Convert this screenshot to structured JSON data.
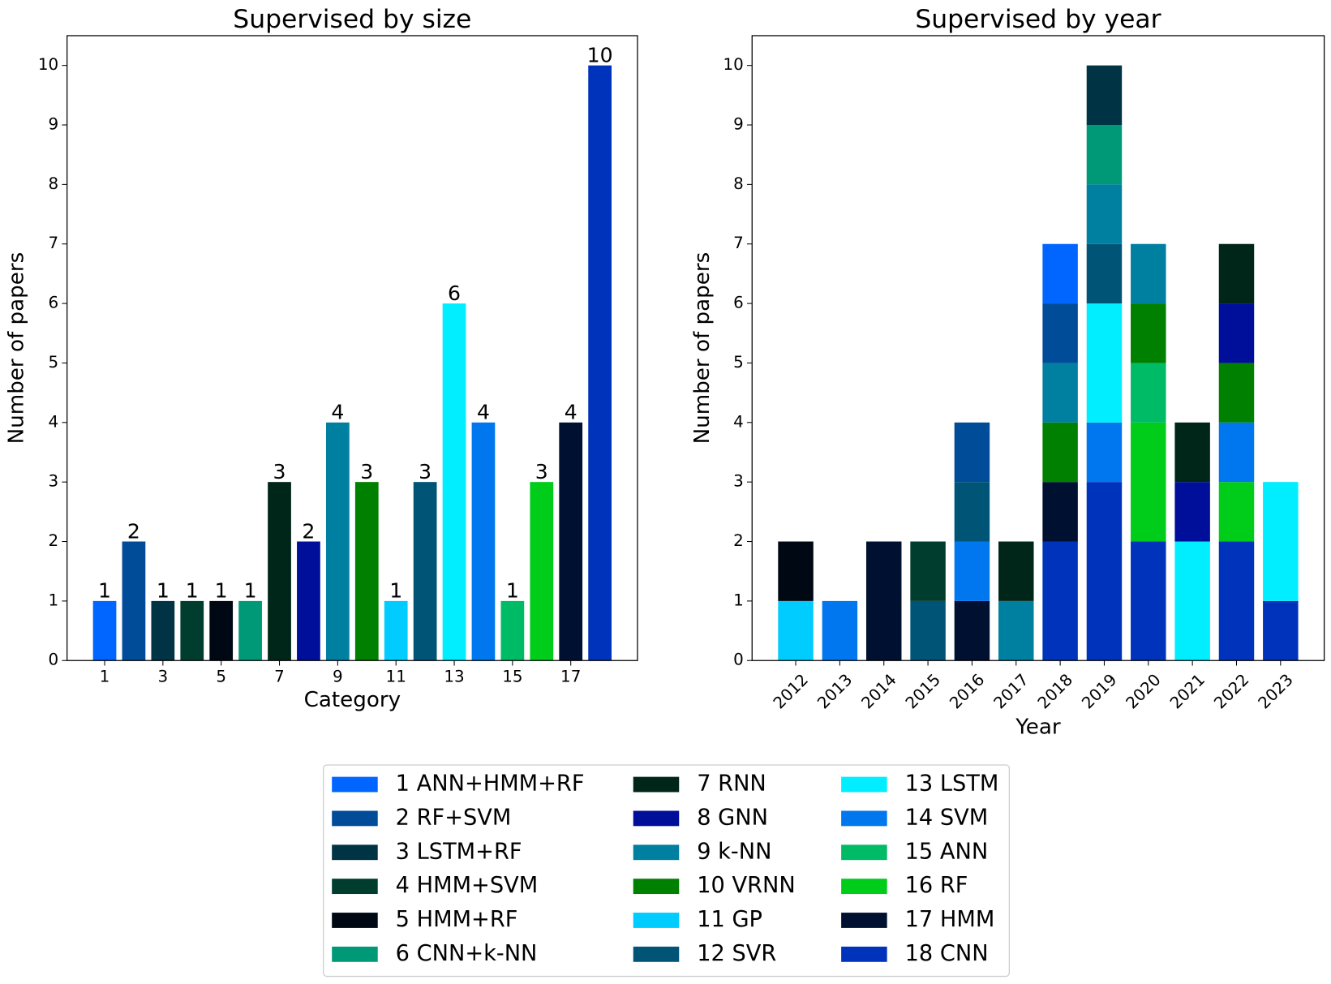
{
  "chart_data": [
    {
      "type": "bar",
      "title": "Supervised by size",
      "xlabel": "Category",
      "ylabel": "Number of papers",
      "x": [
        1,
        2,
        3,
        4,
        5,
        6,
        7,
        8,
        9,
        10,
        11,
        12,
        13,
        14,
        15,
        16,
        17,
        18
      ],
      "values": [
        1,
        2,
        1,
        1,
        1,
        1,
        3,
        2,
        4,
        3,
        1,
        3,
        6,
        4,
        1,
        3,
        4,
        10
      ],
      "colors": [
        "#0066ff",
        "#004c99",
        "#003344",
        "#003d2e",
        "#000814",
        "#009977",
        "#00261a",
        "#000f99",
        "#0080a0",
        "#008000",
        "#00ccff",
        "#005577",
        "#00eeff",
        "#0077ee",
        "#00bb66",
        "#00cc1a",
        "#001030",
        "#0033bb"
      ],
      "xlim": [
        -0.29,
        19.29
      ],
      "xticks": [
        1,
        3,
        5,
        7,
        9,
        11,
        13,
        15,
        17
      ],
      "ylim": [
        0,
        10.5
      ],
      "yticks": [
        0,
        1,
        2,
        3,
        4,
        5,
        6,
        7,
        8,
        9,
        10
      ]
    },
    {
      "type": "stacked-bar",
      "title": "Supervised by year",
      "xlabel": "Year",
      "ylabel": "Number of papers",
      "categories": [
        "2012",
        "2013",
        "2014",
        "2015",
        "2016",
        "2017",
        "2018",
        "2019",
        "2020",
        "2021",
        "2022",
        "2023"
      ],
      "ylim": [
        0,
        10.5
      ],
      "yticks": [
        0,
        1,
        2,
        3,
        4,
        5,
        6,
        7,
        8,
        9,
        10
      ],
      "legend": "below",
      "series": [
        {
          "name": "1 ANN+HMM+RF",
          "color": "#0066ff",
          "values": [
            0,
            0,
            0,
            0,
            0,
            0,
            1,
            0,
            0,
            0,
            0,
            0
          ]
        },
        {
          "name": "2 RF+SVM",
          "color": "#004c99",
          "values": [
            0,
            0,
            0,
            0,
            1,
            0,
            1,
            0,
            0,
            0,
            0,
            0
          ]
        },
        {
          "name": "3 LSTM+RF",
          "color": "#003344",
          "values": [
            0,
            0,
            0,
            0,
            0,
            0,
            0,
            1,
            0,
            0,
            0,
            0
          ]
        },
        {
          "name": "4 HMM+SVM",
          "color": "#003d2e",
          "values": [
            0,
            0,
            0,
            1,
            0,
            0,
            0,
            0,
            0,
            0,
            0,
            0
          ]
        },
        {
          "name": "5 HMM+RF",
          "color": "#000814",
          "values": [
            1,
            0,
            0,
            0,
            0,
            0,
            0,
            0,
            0,
            0,
            0,
            0
          ]
        },
        {
          "name": "6 CNN+k-NN",
          "color": "#009977",
          "values": [
            0,
            0,
            0,
            0,
            0,
            0,
            0,
            1,
            0,
            0,
            0,
            0
          ]
        },
        {
          "name": "7 RNN",
          "color": "#00261a",
          "values": [
            0,
            0,
            0,
            0,
            0,
            1,
            0,
            0,
            0,
            1,
            1,
            0
          ]
        },
        {
          "name": "8 GNN",
          "color": "#000f99",
          "values": [
            0,
            0,
            0,
            0,
            0,
            0,
            0,
            0,
            0,
            1,
            1,
            0
          ]
        },
        {
          "name": "9 k-NN",
          "color": "#0080a0",
          "values": [
            0,
            0,
            0,
            0,
            0,
            1,
            1,
            1,
            1,
            0,
            0,
            0
          ]
        },
        {
          "name": "10 VRNN",
          "color": "#008000",
          "values": [
            0,
            0,
            0,
            0,
            0,
            0,
            1,
            0,
            1,
            0,
            1,
            0
          ]
        },
        {
          "name": "11 GP",
          "color": "#00ccff",
          "values": [
            1,
            0,
            0,
            0,
            0,
            0,
            0,
            0,
            0,
            0,
            0,
            0
          ]
        },
        {
          "name": "12 SVR",
          "color": "#005577",
          "values": [
            0,
            0,
            0,
            1,
            1,
            0,
            0,
            1,
            0,
            0,
            0,
            0
          ]
        },
        {
          "name": "13 LSTM",
          "color": "#00eeff",
          "values": [
            0,
            0,
            0,
            0,
            0,
            0,
            0,
            2,
            0,
            2,
            0,
            2
          ]
        },
        {
          "name": "14 SVM",
          "color": "#0077ee",
          "values": [
            0,
            1,
            0,
            0,
            1,
            0,
            0,
            1,
            0,
            0,
            1,
            0
          ]
        },
        {
          "name": "15 ANN",
          "color": "#00bb66",
          "values": [
            0,
            0,
            0,
            0,
            0,
            0,
            0,
            0,
            1,
            0,
            0,
            0
          ]
        },
        {
          "name": "16 RF",
          "color": "#00cc1a",
          "values": [
            0,
            0,
            0,
            0,
            0,
            0,
            0,
            0,
            2,
            0,
            1,
            0
          ]
        },
        {
          "name": "17 HMM",
          "color": "#001030",
          "values": [
            0,
            0,
            2,
            0,
            1,
            0,
            1,
            0,
            0,
            0,
            0,
            0
          ]
        },
        {
          "name": "18 CNN",
          "color": "#0033bb",
          "values": [
            0,
            0,
            0,
            0,
            0,
            0,
            2,
            3,
            2,
            0,
            2,
            1
          ]
        }
      ]
    }
  ]
}
